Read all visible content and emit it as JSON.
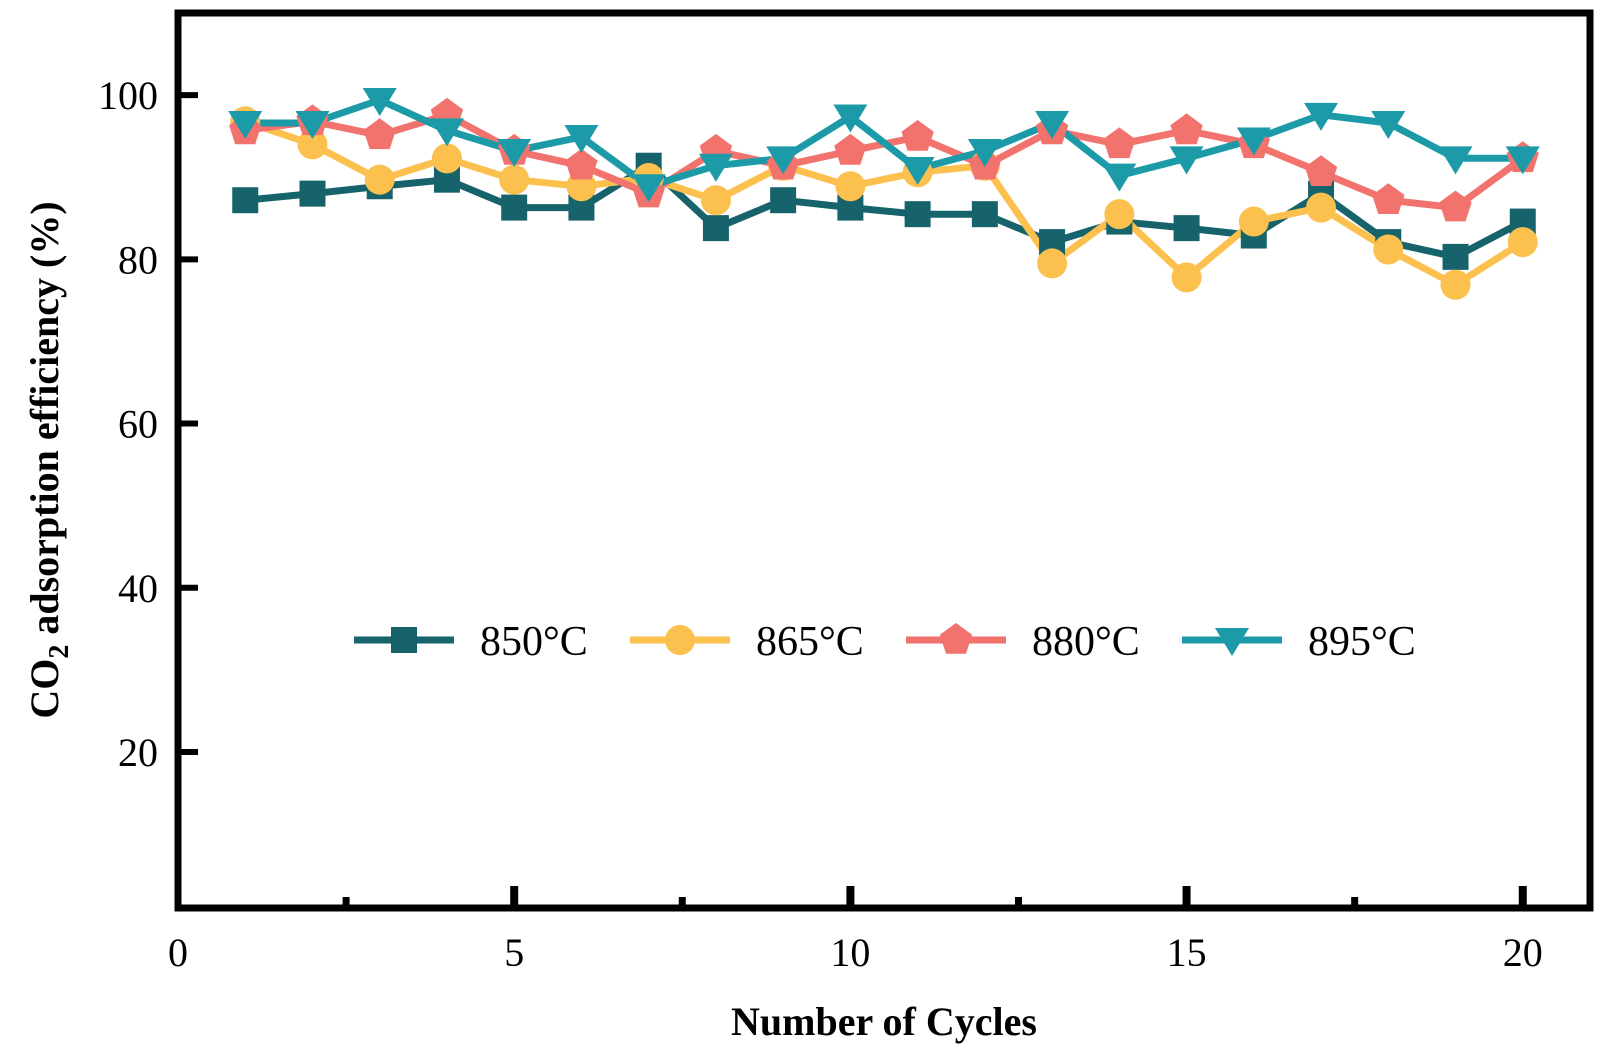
{
  "chart_data": {
    "type": "line",
    "xlabel": "Number of Cycles",
    "ylabel_main": "CO",
    "ylabel_sub": "2",
    "ylabel_rest": " adsorption efficiency (%)",
    "xlim": [
      0,
      21
    ],
    "ylim": [
      1,
      110
    ],
    "x_ticks": [
      0,
      5,
      10,
      15,
      20
    ],
    "x_minor_ticks": [
      2.5,
      7.5,
      12.5,
      17.5
    ],
    "y_ticks": [
      20,
      40,
      60,
      80,
      100
    ],
    "x": [
      1,
      2,
      3,
      4,
      5,
      6,
      7,
      8,
      9,
      10,
      11,
      12,
      13,
      14,
      15,
      16,
      17,
      18,
      19,
      20
    ],
    "legend_position": "center",
    "series": [
      {
        "name": "850°C",
        "color": "#17636b",
        "marker": "square",
        "values": [
          87.2,
          88.0,
          88.9,
          89.7,
          86.3,
          86.3,
          91.4,
          83.8,
          87.2,
          86.3,
          85.5,
          85.5,
          82.1,
          84.6,
          83.8,
          82.9,
          88.0,
          82.1,
          80.3,
          84.6
        ]
      },
      {
        "name": "865°C",
        "color": "#fbc04e",
        "marker": "circle",
        "values": [
          96.8,
          94.0,
          89.7,
          92.3,
          89.7,
          88.9,
          89.9,
          87.2,
          91.4,
          88.9,
          90.6,
          91.4,
          79.5,
          85.5,
          77.8,
          84.6,
          86.3,
          81.2,
          76.9,
          82.1
        ]
      },
      {
        "name": "880°C",
        "color": "#f2736d",
        "marker": "pentagon",
        "values": [
          95.7,
          96.8,
          95.1,
          97.6,
          93.2,
          91.4,
          88.0,
          93.2,
          91.4,
          93.2,
          94.9,
          91.4,
          95.7,
          94.0,
          95.7,
          94.0,
          90.6,
          87.2,
          86.3,
          92.3
        ]
      },
      {
        "name": "895°C",
        "color": "#1d9aa8",
        "marker": "triangle-down",
        "values": [
          96.6,
          96.6,
          99.4,
          95.7,
          93.2,
          94.9,
          88.9,
          91.4,
          92.3,
          97.4,
          91.0,
          93.2,
          96.6,
          90.2,
          92.3,
          94.6,
          97.6,
          96.6,
          92.3,
          92.3
        ]
      }
    ]
  }
}
